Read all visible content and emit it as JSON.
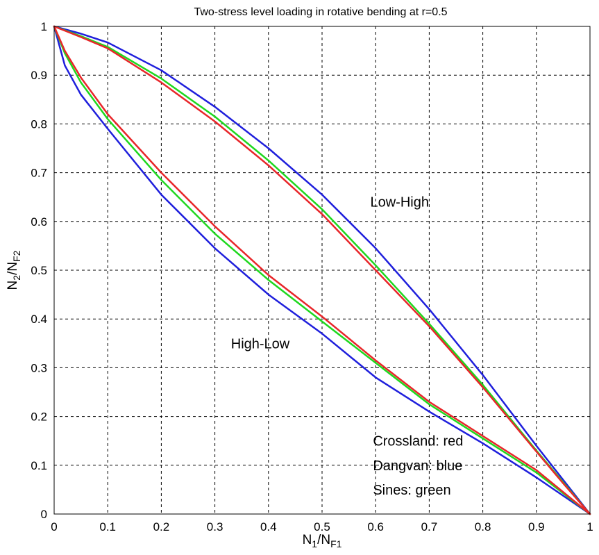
{
  "chart_data": {
    "type": "line",
    "title": "Two-stress level loading in rotative bending at r=0.5",
    "xlabel": {
      "main": "N",
      "sub1": "1",
      "mid": "/N",
      "sub2": "F1"
    },
    "ylabel": {
      "main": "N",
      "sub1": "2",
      "mid": "/N",
      "sub2": "F2"
    },
    "xlim": [
      0,
      1
    ],
    "ylim": [
      0,
      1
    ],
    "grid": true,
    "xticks": [
      "0",
      "0.1",
      "0.2",
      "0.3",
      "0.4",
      "0.5",
      "0.6",
      "0.7",
      "0.8",
      "0.9",
      "1"
    ],
    "yticks": [
      "0",
      "0.1",
      "0.2",
      "0.3",
      "0.4",
      "0.5",
      "0.6",
      "0.7",
      "0.8",
      "0.9",
      "1"
    ],
    "annotations": [
      {
        "text": "Low-High",
        "x": 0.59,
        "y": 0.63
      },
      {
        "text": "High-Low",
        "x": 0.33,
        "y": 0.34
      },
      {
        "text": "Crossland: red",
        "x": 0.595,
        "y": 0.14
      },
      {
        "text": "Dangvan: blue",
        "x": 0.595,
        "y": 0.09
      },
      {
        "text": "Sines: green",
        "x": 0.595,
        "y": 0.04
      }
    ],
    "colors": {
      "red": "#e8262a",
      "blue": "#1f1fdc",
      "green": "#1ed81e"
    },
    "series": [
      {
        "key": "lh_dangvan",
        "color": "blue",
        "x": [
          0,
          0.05,
          0.1,
          0.2,
          0.3,
          0.4,
          0.5,
          0.6,
          0.7,
          0.8,
          0.9,
          0.95,
          1
        ],
        "y": [
          1,
          0.985,
          0.967,
          0.91,
          0.835,
          0.75,
          0.655,
          0.545,
          0.42,
          0.285,
          0.14,
          0.07,
          0
        ]
      },
      {
        "key": "lh_sines",
        "color": "green",
        "x": [
          0,
          0.05,
          0.1,
          0.2,
          0.3,
          0.4,
          0.5,
          0.6,
          0.7,
          0.8,
          0.9,
          0.95,
          1
        ],
        "y": [
          1,
          0.98,
          0.958,
          0.893,
          0.815,
          0.725,
          0.625,
          0.51,
          0.39,
          0.265,
          0.13,
          0.065,
          0
        ]
      },
      {
        "key": "lh_crossland",
        "color": "red",
        "x": [
          0,
          0.05,
          0.1,
          0.2,
          0.3,
          0.4,
          0.5,
          0.6,
          0.7,
          0.8,
          0.9,
          0.95,
          1
        ],
        "y": [
          1,
          0.978,
          0.955,
          0.885,
          0.805,
          0.715,
          0.615,
          0.5,
          0.385,
          0.26,
          0.128,
          0.063,
          0
        ]
      },
      {
        "key": "hl_dangvan",
        "color": "blue",
        "x": [
          0,
          0.02,
          0.05,
          0.1,
          0.2,
          0.3,
          0.4,
          0.5,
          0.6,
          0.7,
          0.8,
          0.9,
          1
        ],
        "y": [
          1,
          0.92,
          0.86,
          0.79,
          0.655,
          0.545,
          0.45,
          0.37,
          0.28,
          0.21,
          0.145,
          0.075,
          0
        ]
      },
      {
        "key": "hl_sines",
        "color": "green",
        "x": [
          0,
          0.02,
          0.05,
          0.1,
          0.2,
          0.3,
          0.4,
          0.5,
          0.6,
          0.7,
          0.8,
          0.9,
          1
        ],
        "y": [
          1,
          0.945,
          0.885,
          0.81,
          0.685,
          0.575,
          0.48,
          0.395,
          0.31,
          0.225,
          0.155,
          0.085,
          0
        ]
      },
      {
        "key": "hl_crossland",
        "color": "red",
        "x": [
          0,
          0.02,
          0.05,
          0.1,
          0.2,
          0.3,
          0.4,
          0.5,
          0.6,
          0.7,
          0.8,
          0.9,
          1
        ],
        "y": [
          1,
          0.95,
          0.895,
          0.82,
          0.7,
          0.59,
          0.49,
          0.405,
          0.315,
          0.23,
          0.16,
          0.09,
          0
        ]
      }
    ]
  }
}
